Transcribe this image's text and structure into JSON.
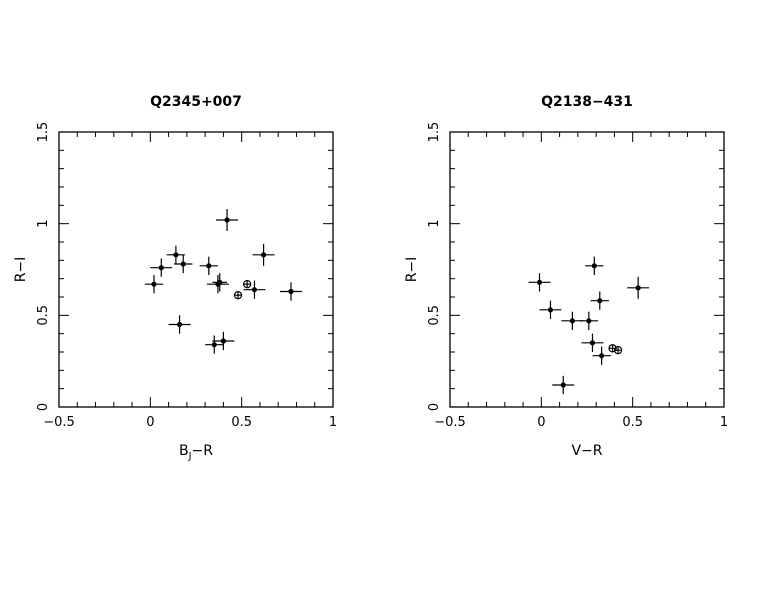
{
  "chart_data": [
    {
      "type": "scatter",
      "title": "Q2345+007",
      "xlabel": {
        "main": "B",
        "sub": "J",
        "rest": "−R"
      },
      "ylabel": "R−I",
      "xlim": [
        -0.5,
        1
      ],
      "ylim": [
        0,
        1.5
      ],
      "xticks": [
        -0.5,
        0,
        0.5,
        1
      ],
      "xtick_labels": [
        "−0.5",
        "0",
        "0.5",
        "1"
      ],
      "yticks": [
        0,
        0.5,
        1,
        1.5
      ],
      "ytick_labels": [
        "0",
        "0.5",
        "1",
        "1.5"
      ],
      "series": [
        {
          "marker": "filled",
          "points": [
            {
              "x": 0.02,
              "y": 0.67,
              "xerr": 0.05,
              "yerr": 0.05
            },
            {
              "x": 0.06,
              "y": 0.76,
              "xerr": 0.06,
              "yerr": 0.05
            },
            {
              "x": 0.14,
              "y": 0.83,
              "xerr": 0.05,
              "yerr": 0.05
            },
            {
              "x": 0.18,
              "y": 0.78,
              "xerr": 0.05,
              "yerr": 0.05
            },
            {
              "x": 0.16,
              "y": 0.45,
              "xerr": 0.06,
              "yerr": 0.05
            },
            {
              "x": 0.32,
              "y": 0.77,
              "xerr": 0.05,
              "yerr": 0.05
            },
            {
              "x": 0.37,
              "y": 0.67,
              "xerr": 0.06,
              "yerr": 0.05
            },
            {
              "x": 0.38,
              "y": 0.68,
              "xerr": 0.04,
              "yerr": 0.05
            },
            {
              "x": 0.42,
              "y": 1.02,
              "xerr": 0.06,
              "yerr": 0.06
            },
            {
              "x": 0.35,
              "y": 0.34,
              "xerr": 0.05,
              "yerr": 0.05
            },
            {
              "x": 0.4,
              "y": 0.36,
              "xerr": 0.06,
              "yerr": 0.05
            },
            {
              "x": 0.57,
              "y": 0.64,
              "xerr": 0.06,
              "yerr": 0.05
            },
            {
              "x": 0.62,
              "y": 0.83,
              "xerr": 0.06,
              "yerr": 0.06
            },
            {
              "x": 0.77,
              "y": 0.63,
              "xerr": 0.06,
              "yerr": 0.05
            }
          ]
        },
        {
          "marker": "open",
          "points": [
            {
              "x": 0.48,
              "y": 0.61,
              "xerr": 0.02,
              "yerr": 0.02
            },
            {
              "x": 0.53,
              "y": 0.67,
              "xerr": 0.02,
              "yerr": 0.02
            }
          ]
        }
      ]
    },
    {
      "type": "scatter",
      "title": "Q2138−431",
      "xlabel": {
        "main": "V−R",
        "sub": "",
        "rest": ""
      },
      "ylabel": "R−I",
      "xlim": [
        -0.5,
        1
      ],
      "ylim": [
        0,
        1.5
      ],
      "xticks": [
        -0.5,
        0,
        0.5,
        1
      ],
      "xtick_labels": [
        "−0.5",
        "0",
        "0.5",
        "1"
      ],
      "yticks": [
        0,
        0.5,
        1,
        1.5
      ],
      "ytick_labels": [
        "0",
        "0.5",
        "1",
        "1.5"
      ],
      "series": [
        {
          "marker": "filled",
          "points": [
            {
              "x": -0.01,
              "y": 0.68,
              "xerr": 0.06,
              "yerr": 0.05
            },
            {
              "x": 0.05,
              "y": 0.53,
              "xerr": 0.06,
              "yerr": 0.05
            },
            {
              "x": 0.17,
              "y": 0.47,
              "xerr": 0.06,
              "yerr": 0.05
            },
            {
              "x": 0.26,
              "y": 0.47,
              "xerr": 0.05,
              "yerr": 0.05
            },
            {
              "x": 0.29,
              "y": 0.77,
              "xerr": 0.05,
              "yerr": 0.05
            },
            {
              "x": 0.32,
              "y": 0.58,
              "xerr": 0.05,
              "yerr": 0.05
            },
            {
              "x": 0.28,
              "y": 0.35,
              "xerr": 0.06,
              "yerr": 0.05
            },
            {
              "x": 0.33,
              "y": 0.28,
              "xerr": 0.05,
              "yerr": 0.05
            },
            {
              "x": 0.12,
              "y": 0.12,
              "xerr": 0.06,
              "yerr": 0.05
            },
            {
              "x": 0.53,
              "y": 0.65,
              "xerr": 0.06,
              "yerr": 0.06
            }
          ]
        },
        {
          "marker": "open",
          "points": [
            {
              "x": 0.39,
              "y": 0.32,
              "xerr": 0.02,
              "yerr": 0.02
            },
            {
              "x": 0.42,
              "y": 0.31,
              "xerr": 0.02,
              "yerr": 0.02
            }
          ]
        }
      ]
    }
  ]
}
